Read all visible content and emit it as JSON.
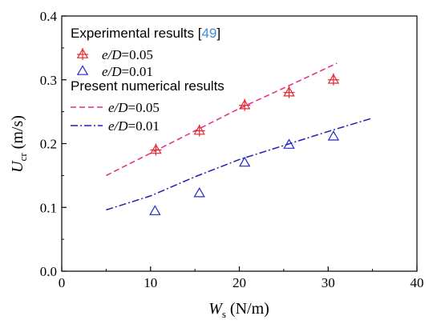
{
  "chart_data": {
    "type": "scatter",
    "xlabel": {
      "symbol": "W",
      "sub": "s",
      "unit": " (N/m)"
    },
    "ylabel": {
      "symbol": "U",
      "sub": "cr",
      "unit": " (m/s)"
    },
    "xlim": [
      0,
      40
    ],
    "ylim": [
      0,
      0.4
    ],
    "xticks": [
      "0",
      "10",
      "20",
      "30",
      "40"
    ],
    "yticks": [
      "0.0",
      "0.1",
      "0.2",
      "0.3",
      "0.4"
    ],
    "grid": false,
    "legend_position": "top-left",
    "legend": {
      "experimental_heading": "Experimental results [",
      "experimental_ref": "49",
      "experimental_close": "]",
      "numerical_heading": "Present numerical results"
    },
    "experimental_series": [
      {
        "param": "e/D",
        "value": "=0.05",
        "marker": "triangle-plus",
        "color": "#e8262e",
        "x": [
          10.6,
          15.5,
          20.6,
          25.6,
          30.6
        ],
        "y": [
          0.19,
          0.22,
          0.26,
          0.28,
          0.3
        ]
      },
      {
        "param": "e/D",
        "value": "=0.01",
        "marker": "triangle",
        "color": "#2528c8",
        "x": [
          10.5,
          15.5,
          20.6,
          25.6,
          30.6
        ],
        "y": [
          0.094,
          0.122,
          0.17,
          0.198,
          0.211
        ]
      }
    ],
    "numerical_series": [
      {
        "param": "e/D",
        "value": "=0.05",
        "style": "dashed",
        "color": "#e6288a",
        "x": [
          5,
          10,
          15,
          20,
          25,
          31
        ],
        "y": [
          0.15,
          0.185,
          0.22,
          0.255,
          0.287,
          0.326
        ]
      },
      {
        "param": "e/D",
        "value": "=0.01",
        "style": "dashdot",
        "color": "#1f1fb0",
        "x": [
          5,
          10,
          15,
          20,
          25,
          30,
          35
        ],
        "y": [
          0.096,
          0.118,
          0.148,
          0.175,
          0.197,
          0.219,
          0.24
        ]
      }
    ]
  }
}
